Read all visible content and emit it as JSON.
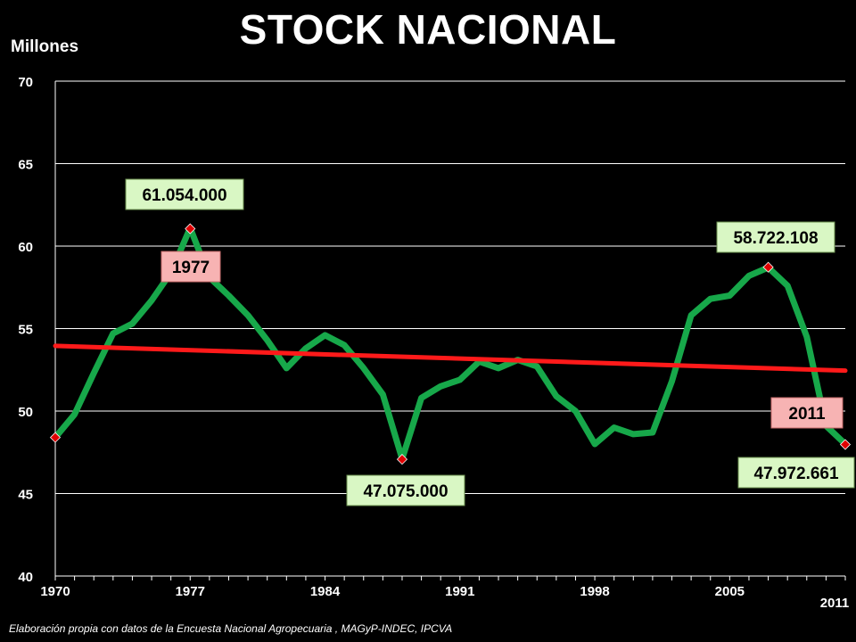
{
  "title": "STOCK NACIONAL",
  "ylabel": "Millones",
  "footer": "Elaboración propia  con datos de la Encuesta Nacional Agropecuaria , MAGyP-INDEC, IPCVA",
  "colors": {
    "background": "#000000",
    "series": "#17a84a",
    "trend": "#ff1a1a",
    "marker": "#e00000",
    "value_box": "#d9f7c4",
    "year_box": "#f7b3b3"
  },
  "chart_data": {
    "type": "line",
    "title": "STOCK NACIONAL",
    "xlabel": "",
    "ylabel": "Millones",
    "xlim": [
      1970,
      2011
    ],
    "ylim": [
      40,
      70
    ],
    "yticks": [
      40,
      45,
      50,
      55,
      60,
      65,
      70
    ],
    "xticks": [
      "1970",
      "1977",
      "1984",
      "1991",
      "1998",
      "2005",
      "2011"
    ],
    "grid": true,
    "series": [
      {
        "x": [
          1970,
          1971,
          1972,
          1973,
          1974,
          1975,
          1976,
          1977,
          1978,
          1979,
          1980,
          1981,
          1982,
          1983,
          1984,
          1985,
          1986,
          1987,
          1988,
          1989,
          1990,
          1991,
          1992,
          1993,
          1994,
          1995,
          1996,
          1997,
          1998,
          1999,
          2000,
          2001,
          2002,
          2003,
          2004,
          2005,
          2006,
          2007,
          2008,
          2009,
          2010,
          2011
        ],
        "values": [
          48.4,
          49.8,
          52.3,
          54.7,
          55.3,
          56.7,
          58.4,
          61.1,
          58.1,
          57.0,
          55.8,
          54.3,
          52.6,
          53.8,
          54.6,
          54.0,
          52.6,
          51.0,
          47.1,
          50.8,
          51.5,
          51.9,
          53.0,
          52.6,
          53.1,
          52.7,
          50.9,
          50.0,
          48.0,
          49.0,
          48.6,
          48.7,
          51.8,
          55.8,
          56.8,
          57.0,
          58.2,
          58.7,
          57.6,
          54.5,
          49.1,
          48.0
        ]
      },
      {
        "x": [
          1970,
          2011
        ],
        "values": [
          53.95,
          52.45
        ]
      }
    ],
    "annotations": [
      {
        "kind": "value",
        "x": 1977,
        "y": 61.054,
        "text": "61.054.000"
      },
      {
        "kind": "year",
        "x": 1977,
        "text": "1977"
      },
      {
        "kind": "value",
        "x": 1988,
        "y": 47.075,
        "text": "47.075.000"
      },
      {
        "kind": "value",
        "x": 2007,
        "y": 58.722108,
        "text": "58.722.108"
      },
      {
        "kind": "year",
        "x": 2011,
        "text": "2011"
      },
      {
        "kind": "value",
        "x": 2011,
        "y": 47.972661,
        "text": "47.972.661"
      }
    ],
    "markers": [
      {
        "x": 1970,
        "y": 48.4
      },
      {
        "x": 1977,
        "y": 61.054
      },
      {
        "x": 1988,
        "y": 47.075
      },
      {
        "x": 2007,
        "y": 58.722108
      },
      {
        "x": 2011,
        "y": 47.972661
      }
    ]
  }
}
